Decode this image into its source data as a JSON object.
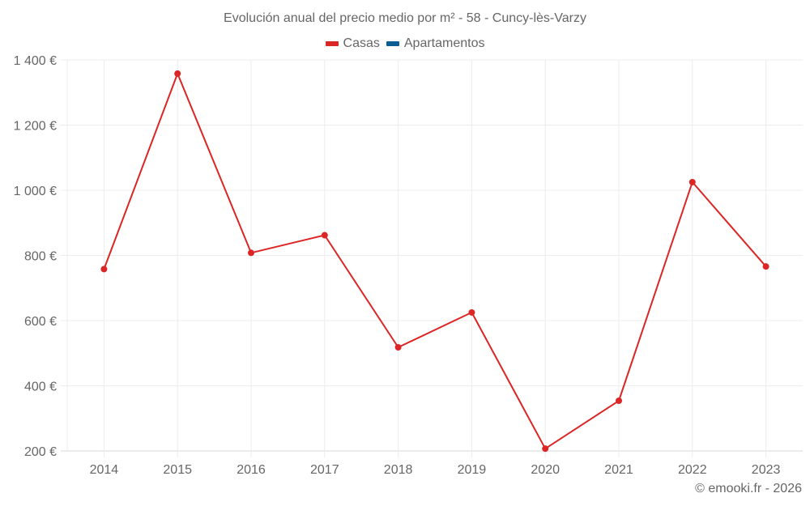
{
  "title": "Evolución anual del precio medio por m² - 58 - Cuncy-lès-Varzy",
  "legend": [
    {
      "label": "Casas",
      "color": "#dc2626"
    },
    {
      "label": "Apartamentos",
      "color": "#0b5e95"
    }
  ],
  "credit": "© emooki.fr - 2026",
  "chart_data": {
    "type": "line",
    "title": "Evolución anual del precio medio por m² - 58 - Cuncy-lès-Varzy",
    "xlabel": "",
    "ylabel": "",
    "categories": [
      "2014",
      "2015",
      "2016",
      "2017",
      "2018",
      "2019",
      "2020",
      "2021",
      "2022",
      "2023"
    ],
    "series": [
      {
        "name": "Casas",
        "color": "#dc2626",
        "values": [
          758,
          1358,
          808,
          862,
          518,
          625,
          207,
          354,
          1025,
          766
        ]
      },
      {
        "name": "Apartamentos",
        "color": "#0b5e95",
        "values": []
      }
    ],
    "ylim": [
      200,
      1400
    ],
    "yticks": [
      200,
      400,
      600,
      800,
      1000,
      1200,
      1400
    ],
    "ytick_labels": [
      "200 €",
      "400 €",
      "600 €",
      "800 €",
      "1 000 €",
      "1 200 €",
      "1 400 €"
    ],
    "grid": true,
    "legend_position": "top"
  }
}
